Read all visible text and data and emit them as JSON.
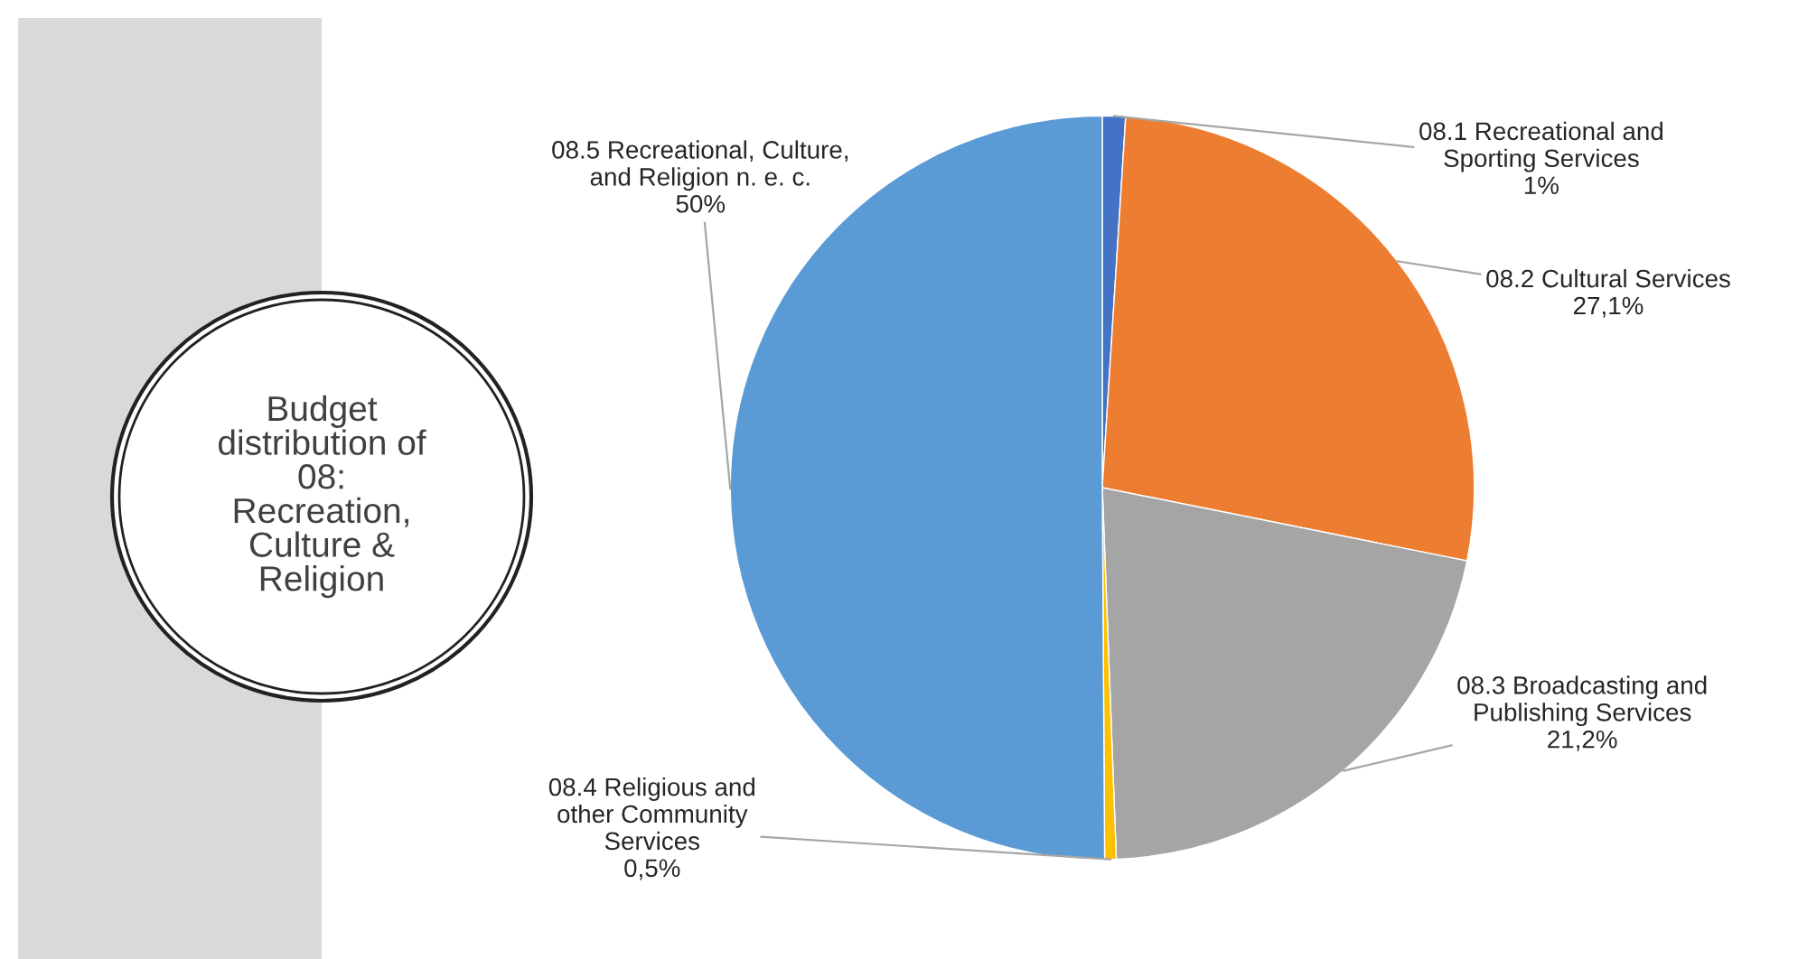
{
  "chart_data": {
    "type": "pie",
    "title": "Budget\ndistribution of\n08:\nRecreation,\nCulture &\nReligion",
    "categories": [
      "08.1 Recreational and\nSporting Services",
      "08.2 Cultural Services",
      "08.3 Broadcasting and\nPublishing Services",
      "08.4 Religious and\nother Community\nServices",
      "08.5 Recreational, Culture,\nand Religion n. e. c."
    ],
    "values": [
      1,
      27.1,
      21.2,
      0.5,
      50
    ],
    "value_labels": [
      "1%",
      "27,1%",
      "21,2%",
      "0,5%",
      "50%"
    ],
    "colors": [
      "#4472c4",
      "#ed7d31",
      "#a5a5a5",
      "#ffc000",
      "#5b9bd5"
    ],
    "legend": false
  }
}
